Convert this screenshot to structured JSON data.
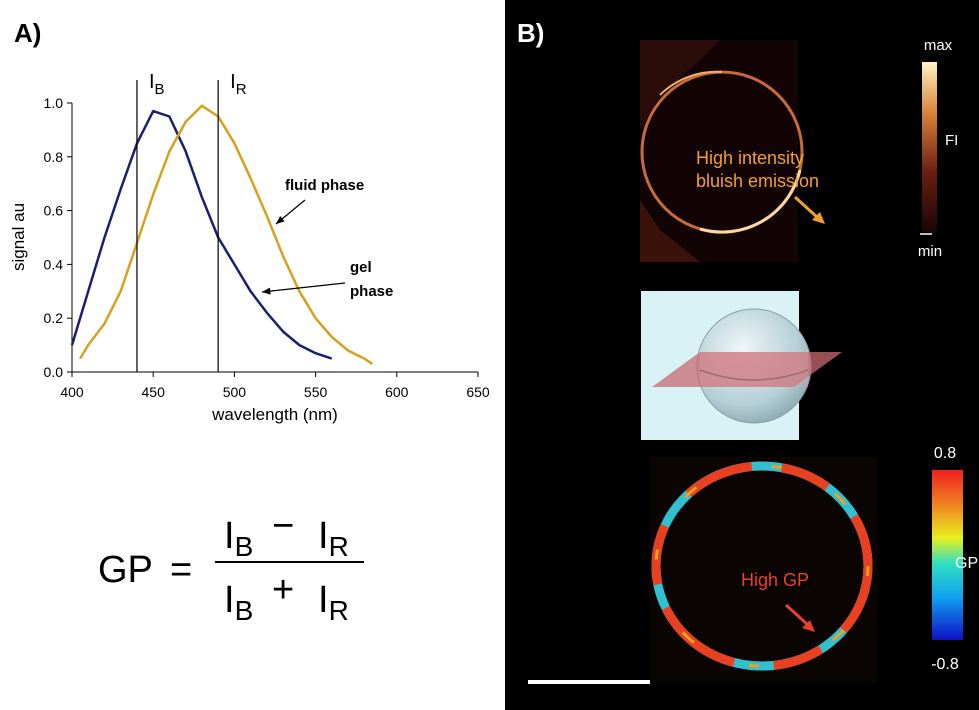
{
  "panel_a": {
    "label": "A)"
  },
  "chart_data": {
    "type": "line",
    "xlabel": "wavelength (nm)",
    "ylabel": "signal au",
    "xlim": [
      400,
      650
    ],
    "xticks": [
      400,
      450,
      500,
      550,
      600,
      650
    ],
    "ylim": [
      0,
      1.0
    ],
    "yticks": [
      {
        "value": 0,
        "label": "0.0"
      },
      0.2,
      0.4,
      0.6,
      0.8,
      {
        "value": 1.0,
        "label": "1.0"
      }
    ],
    "grid": false,
    "series": [
      {
        "name": "gel phase",
        "color": "#1c1f6e",
        "x": [
          400,
          410,
          420,
          430,
          440,
          450,
          460,
          470,
          480,
          490,
          500,
          510,
          520,
          530,
          540,
          550,
          560
        ],
        "values": [
          0.1,
          0.3,
          0.5,
          0.68,
          0.85,
          0.97,
          0.95,
          0.82,
          0.65,
          0.5,
          0.4,
          0.3,
          0.22,
          0.15,
          0.1,
          0.07,
          0.05
        ]
      },
      {
        "name": "fluid phase",
        "color": "#d4a21c",
        "x": [
          405,
          410,
          420,
          430,
          440,
          450,
          460,
          470,
          480,
          490,
          500,
          510,
          520,
          530,
          540,
          550,
          560,
          570,
          580,
          585
        ],
        "values": [
          0.05,
          0.1,
          0.18,
          0.3,
          0.48,
          0.66,
          0.82,
          0.93,
          0.99,
          0.95,
          0.85,
          0.72,
          0.58,
          0.43,
          0.3,
          0.2,
          0.13,
          0.08,
          0.05,
          0.03
        ]
      }
    ],
    "markers": [
      {
        "x": 440,
        "label": "I",
        "sub": "B"
      },
      {
        "x": 490,
        "label": "I",
        "sub": "R"
      }
    ]
  },
  "formula": {
    "lhs": "GP",
    "eq": "=",
    "numerator": [
      {
        "base": "I",
        "sub": "B"
      },
      "−",
      {
        "base": "I",
        "sub": "R"
      }
    ],
    "denominator": [
      {
        "base": "I",
        "sub": "B"
      },
      "+",
      {
        "base": "I",
        "sub": "R"
      }
    ]
  },
  "panel_b": {
    "label": "B)",
    "intensity_scale": {
      "max_label": "max",
      "min_label": "min",
      "label": "FI"
    },
    "intensity_note": "High intensity bluish emission",
    "gp_scale": {
      "max": 0.8,
      "min": -0.8,
      "label": "GP"
    },
    "gp_note": "High GP"
  }
}
